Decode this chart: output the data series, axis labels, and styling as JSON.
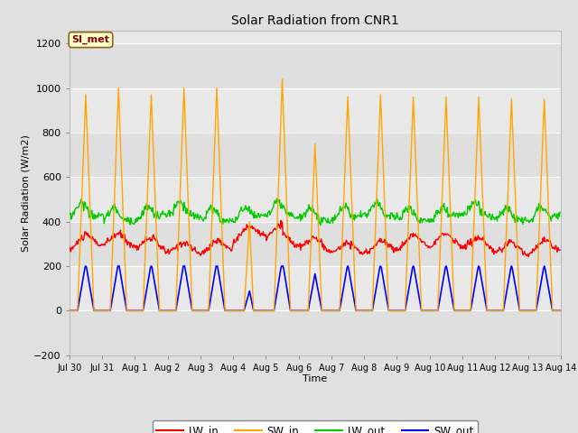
{
  "title": "Solar Radiation from CNR1",
  "xlabel": "Time",
  "ylabel": "Solar Radiation (W/m2)",
  "ylim": [
    -200,
    1260
  ],
  "yticks": [
    -200,
    0,
    200,
    400,
    600,
    800,
    1000,
    1200
  ],
  "label_text": "SI_met",
  "label_box_color": "#FFFFCC",
  "label_box_edge": "#8B6914",
  "label_text_color": "#8B0000",
  "colors": {
    "LW_in": "#FF0000",
    "SW_in": "#FFA500",
    "LW_out": "#00CC00",
    "SW_out": "#0000FF"
  },
  "bg_color": "#E0E0E0",
  "plot_bg_color": "#E8E8E8",
  "grid_color": "#FFFFFF",
  "tick_labels": [
    "Jul 30",
    "Jul 31",
    "Aug 1",
    "Aug 2",
    "Aug 3",
    "Aug 4",
    "Aug 5",
    "Aug 6",
    "Aug 7",
    "Aug 8",
    "Aug 9",
    "Aug 10",
    "Aug 11",
    "Aug 12",
    "Aug 13",
    "Aug 14"
  ],
  "figsize": [
    6.4,
    4.8
  ],
  "dpi": 100
}
